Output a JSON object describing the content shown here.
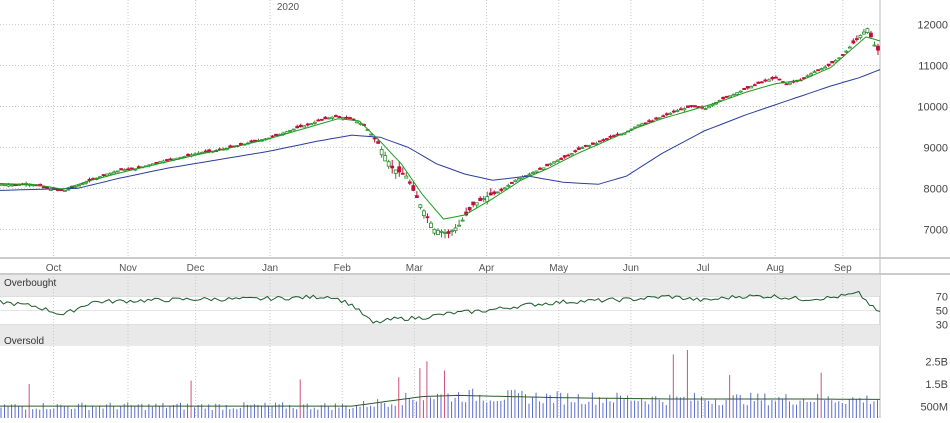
{
  "chart_data": [
    {
      "type": "candlestick",
      "year_label": "2020",
      "x_months": [
        "Oct",
        "Nov",
        "Dec",
        "Jan",
        "Feb",
        "Mar",
        "Apr",
        "May",
        "Jun",
        "Jul",
        "Aug",
        "Sep"
      ],
      "y_ticks": [
        7000,
        8000,
        9000,
        10000,
        11000,
        12000
      ],
      "ylim": [
        6300,
        12600
      ],
      "grid": true,
      "colors": {
        "up": "#2e8b2e",
        "down": "#c0103a",
        "ma_short": "#1a9c1a",
        "ma_long": "#2b3d9c"
      },
      "close_path": [
        [
          0,
          8100
        ],
        [
          4,
          8080
        ],
        [
          7,
          8120
        ],
        [
          11,
          8060
        ],
        [
          14,
          7980
        ],
        [
          18,
          7950
        ],
        [
          22,
          8080
        ],
        [
          26,
          8220
        ],
        [
          30,
          8350
        ],
        [
          34,
          8450
        ],
        [
          38,
          8480
        ],
        [
          41,
          8550
        ],
        [
          45,
          8650
        ],
        [
          49,
          8720
        ],
        [
          53,
          8800
        ],
        [
          57,
          8880
        ],
        [
          61,
          8920
        ],
        [
          64,
          8980
        ],
        [
          68,
          9060
        ],
        [
          72,
          9150
        ],
        [
          76,
          9230
        ],
        [
          80,
          9350
        ],
        [
          84,
          9480
        ],
        [
          88,
          9580
        ],
        [
          91,
          9680
        ],
        [
          95,
          9760
        ],
        [
          99,
          9700
        ],
        [
          103,
          9550
        ],
        [
          107,
          9100
        ],
        [
          111,
          8500
        ],
        [
          115,
          8300
        ],
        [
          119,
          7600
        ],
        [
          123,
          7000
        ],
        [
          127,
          6900
        ],
        [
          130,
          7100
        ],
        [
          134,
          7600
        ],
        [
          138,
          7800
        ],
        [
          142,
          7950
        ],
        [
          146,
          8200
        ],
        [
          150,
          8350
        ],
        [
          154,
          8500
        ],
        [
          157,
          8650
        ],
        [
          161,
          8800
        ],
        [
          165,
          9000
        ],
        [
          169,
          9100
        ],
        [
          173,
          9250
        ],
        [
          177,
          9350
        ],
        [
          181,
          9550
        ],
        [
          185,
          9650
        ],
        [
          189,
          9800
        ],
        [
          192,
          9900
        ],
        [
          196,
          10000
        ],
        [
          200,
          9950
        ],
        [
          204,
          10150
        ],
        [
          208,
          10300
        ],
        [
          212,
          10450
        ],
        [
          216,
          10600
        ],
        [
          220,
          10700
        ],
        [
          223,
          10550
        ],
        [
          227,
          10650
        ],
        [
          231,
          10850
        ],
        [
          235,
          11000
        ],
        [
          239,
          11250
        ],
        [
          243,
          11650
        ],
        [
          246,
          11900
        ],
        [
          248,
          11500
        ],
        [
          250,
          11250
        ]
      ],
      "ma_short_path": [
        [
          0,
          8120
        ],
        [
          10,
          8090
        ],
        [
          18,
          7980
        ],
        [
          26,
          8200
        ],
        [
          36,
          8420
        ],
        [
          46,
          8620
        ],
        [
          56,
          8820
        ],
        [
          66,
          9000
        ],
        [
          76,
          9200
        ],
        [
          86,
          9450
        ],
        [
          96,
          9700
        ],
        [
          102,
          9650
        ],
        [
          108,
          9150
        ],
        [
          114,
          8600
        ],
        [
          120,
          7850
        ],
        [
          126,
          7250
        ],
        [
          132,
          7350
        ],
        [
          140,
          7750
        ],
        [
          148,
          8200
        ],
        [
          156,
          8500
        ],
        [
          164,
          8850
        ],
        [
          172,
          9150
        ],
        [
          180,
          9450
        ],
        [
          188,
          9700
        ],
        [
          196,
          9900
        ],
        [
          204,
          10100
        ],
        [
          212,
          10350
        ],
        [
          220,
          10550
        ],
        [
          228,
          10650
        ],
        [
          236,
          10950
        ],
        [
          242,
          11400
        ],
        [
          246,
          11700
        ],
        [
          250,
          11600
        ]
      ],
      "ma_long_path": [
        [
          0,
          7950
        ],
        [
          12,
          7980
        ],
        [
          22,
          8000
        ],
        [
          34,
          8250
        ],
        [
          48,
          8500
        ],
        [
          62,
          8700
        ],
        [
          76,
          8900
        ],
        [
          90,
          9150
        ],
        [
          100,
          9300
        ],
        [
          108,
          9250
        ],
        [
          116,
          9000
        ],
        [
          124,
          8600
        ],
        [
          132,
          8350
        ],
        [
          140,
          8200
        ],
        [
          150,
          8300
        ],
        [
          160,
          8150
        ],
        [
          170,
          8100
        ],
        [
          178,
          8300
        ],
        [
          188,
          8850
        ],
        [
          200,
          9400
        ],
        [
          212,
          9800
        ],
        [
          224,
          10150
        ],
        [
          236,
          10500
        ],
        [
          244,
          10700
        ],
        [
          250,
          10900
        ]
      ]
    },
    {
      "type": "line",
      "labels": {
        "overbought": "Overbought",
        "oversold": "Oversold"
      },
      "y_ticks": [
        70,
        50,
        30
      ],
      "ylim": [
        0,
        100
      ],
      "color": "#1a5a2a",
      "values": [
        [
          0,
          62
        ],
        [
          10,
          56
        ],
        [
          18,
          44
        ],
        [
          26,
          62
        ],
        [
          40,
          64
        ],
        [
          56,
          66
        ],
        [
          70,
          66
        ],
        [
          84,
          68
        ],
        [
          94,
          70
        ],
        [
          100,
          58
        ],
        [
          106,
          32
        ],
        [
          112,
          38
        ],
        [
          120,
          40
        ],
        [
          128,
          46
        ],
        [
          138,
          50
        ],
        [
          150,
          58
        ],
        [
          160,
          62
        ],
        [
          170,
          64
        ],
        [
          180,
          66
        ],
        [
          190,
          70
        ],
        [
          200,
          64
        ],
        [
          210,
          70
        ],
        [
          220,
          70
        ],
        [
          228,
          66
        ],
        [
          236,
          68
        ],
        [
          244,
          74
        ],
        [
          248,
          54
        ],
        [
          250,
          46
        ]
      ]
    },
    {
      "type": "bar",
      "y_ticks": [
        "2.5B",
        "1.5B",
        "500M"
      ],
      "ylim": [
        0,
        3000
      ],
      "color": "#5a6bd0",
      "spike_color": "#d0507a",
      "ma_color": "#2b5a2a",
      "avg_line": [
        [
          0,
          500
        ],
        [
          100,
          500
        ],
        [
          110,
          700
        ],
        [
          120,
          900
        ],
        [
          130,
          950
        ],
        [
          160,
          850
        ],
        [
          190,
          800
        ],
        [
          230,
          800
        ],
        [
          250,
          780
        ]
      ],
      "spikes": [
        [
          8,
          1500
        ],
        [
          54,
          1650
        ],
        [
          85,
          1700
        ],
        [
          113,
          1800
        ],
        [
          119,
          2200
        ],
        [
          121,
          2500
        ],
        [
          126,
          2100
        ],
        [
          191,
          2800
        ],
        [
          195,
          3000
        ],
        [
          207,
          1900
        ],
        [
          233,
          2000
        ]
      ],
      "baseline": 400
    }
  ]
}
